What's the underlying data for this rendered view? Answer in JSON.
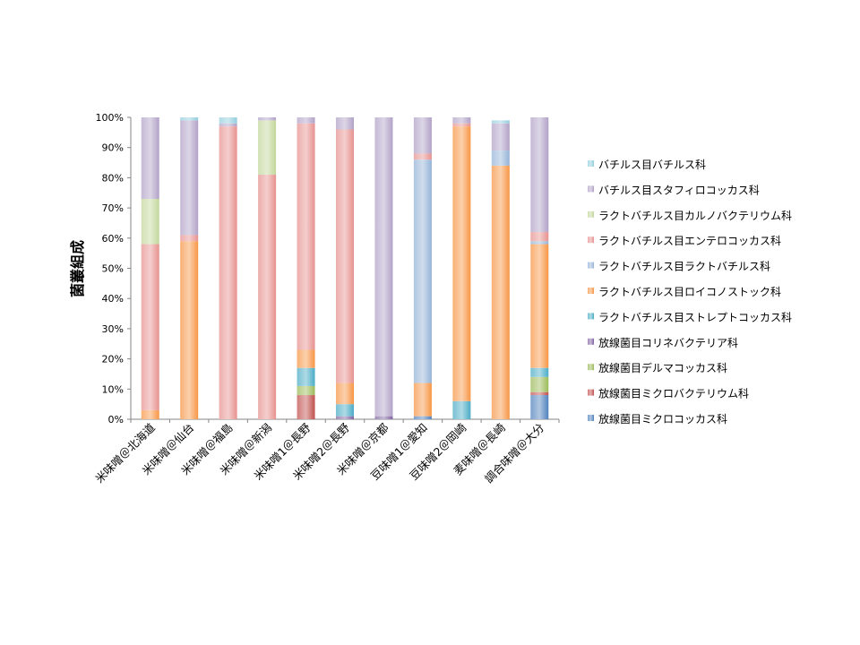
{
  "chart_data": {
    "type": "bar",
    "stacked": true,
    "percent": true,
    "title": "",
    "xlabel": "",
    "ylabel": "菌叢組成",
    "ylim": [
      0,
      100
    ],
    "yticks": [
      "0%",
      "10%",
      "20%",
      "30%",
      "40%",
      "50%",
      "60%",
      "70%",
      "80%",
      "90%",
      "100%"
    ],
    "grid": false,
    "legend_position": "right",
    "categories": [
      "米味噌＠北海道",
      "米味噌＠仙台",
      "米味噌＠福島",
      "米味噌＠新潟",
      "米味噌1＠長野",
      "米味噌2＠長野",
      "米味噌＠京都",
      "豆味噌1＠愛知",
      "豆味噌2＠岡崎",
      "麦味噌＠長崎",
      "調合味噌＠大分"
    ],
    "series": [
      {
        "name": "放線菌目ミクロコッカス科",
        "color": "#4f81bd",
        "values": [
          0,
          0,
          0,
          0,
          0,
          0,
          0,
          1,
          0,
          0,
          8
        ]
      },
      {
        "name": "放線菌目ミクロバクテリウム科",
        "color": "#c0504d",
        "values": [
          0,
          0,
          0,
          0,
          8,
          0,
          0,
          0,
          0,
          0,
          1
        ]
      },
      {
        "name": "放線菌目デルマコッカス科",
        "color": "#9bbb59",
        "values": [
          0,
          0,
          0,
          0,
          3,
          0,
          0,
          0,
          0,
          0,
          5
        ]
      },
      {
        "name": "放線菌目コリネバクテリア科",
        "color": "#8064a2",
        "values": [
          0,
          0,
          0,
          0,
          0,
          1,
          1,
          0,
          0,
          0,
          0
        ]
      },
      {
        "name": "ラクトバチルス目ストレプトコッカス科",
        "color": "#4bacc6",
        "values": [
          0,
          0,
          0,
          0,
          6,
          4,
          0,
          0,
          6,
          0,
          3
        ]
      },
      {
        "name": "ラクトバチルス目ロイコノストック科",
        "color": "#f79646",
        "values": [
          3,
          59,
          0,
          0,
          6,
          7,
          0,
          11,
          91,
          84,
          41
        ]
      },
      {
        "name": "ラクトバチルス目ラクトバチルス科",
        "color": "#95b3d7",
        "values": [
          0,
          0,
          0,
          0,
          0,
          0,
          0,
          74,
          0,
          5,
          1
        ]
      },
      {
        "name": "ラクトバチルス目エンテロコッカス科",
        "color": "#e6928f",
        "values": [
          55,
          2,
          97,
          81,
          75,
          84,
          0,
          2,
          1,
          0,
          3
        ]
      },
      {
        "name": "ラクトバチルス目カルノバクテリウム科",
        "color": "#c3d69b",
        "values": [
          15,
          0,
          0,
          18,
          0,
          0,
          0,
          0,
          0,
          0,
          0
        ]
      },
      {
        "name": "バチルス目スタフィロコッカス科",
        "color": "#b2a2c7",
        "values": [
          27,
          38,
          1,
          1,
          2,
          4,
          99,
          12,
          2,
          9,
          38
        ]
      },
      {
        "name": "バチルス目バチルス科",
        "color": "#93cddd",
        "values": [
          0,
          1,
          2,
          0,
          0,
          0,
          0,
          0,
          0,
          1,
          0
        ]
      }
    ]
  }
}
